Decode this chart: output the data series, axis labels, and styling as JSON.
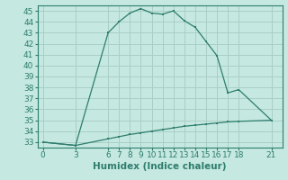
{
  "title": "",
  "xlabel": "Humidex (Indice chaleur)",
  "ylabel": "",
  "bg_color": "#c5e8e0",
  "line_color": "#2e7d6e",
  "grid_color": "#aacfc7",
  "xticks": [
    0,
    3,
    6,
    7,
    8,
    9,
    10,
    11,
    12,
    13,
    14,
    15,
    16,
    17,
    18,
    21
  ],
  "ylim": [
    32.5,
    45.5
  ],
  "xlim": [
    -0.5,
    22
  ],
  "yticks": [
    33,
    34,
    35,
    36,
    37,
    38,
    39,
    40,
    41,
    42,
    43,
    44,
    45
  ],
  "line1_x": [
    0,
    3,
    6,
    7,
    8,
    9,
    10,
    11,
    12,
    13,
    14,
    15,
    16,
    17,
    18,
    21
  ],
  "line1_y": [
    33.0,
    32.7,
    43.0,
    44.0,
    44.8,
    45.2,
    44.8,
    44.7,
    45.0,
    44.1,
    43.5,
    42.2,
    40.9,
    37.5,
    37.8,
    35.0
  ],
  "line2_x": [
    0,
    3,
    6,
    7,
    8,
    9,
    10,
    11,
    12,
    13,
    14,
    15,
    16,
    17,
    18,
    21
  ],
  "line2_y": [
    33.0,
    32.7,
    33.3,
    33.5,
    33.7,
    33.85,
    34.0,
    34.15,
    34.3,
    34.45,
    34.55,
    34.65,
    34.75,
    34.85,
    34.9,
    35.0
  ],
  "tick_fontsize": 6.5,
  "label_fontsize": 7.5
}
